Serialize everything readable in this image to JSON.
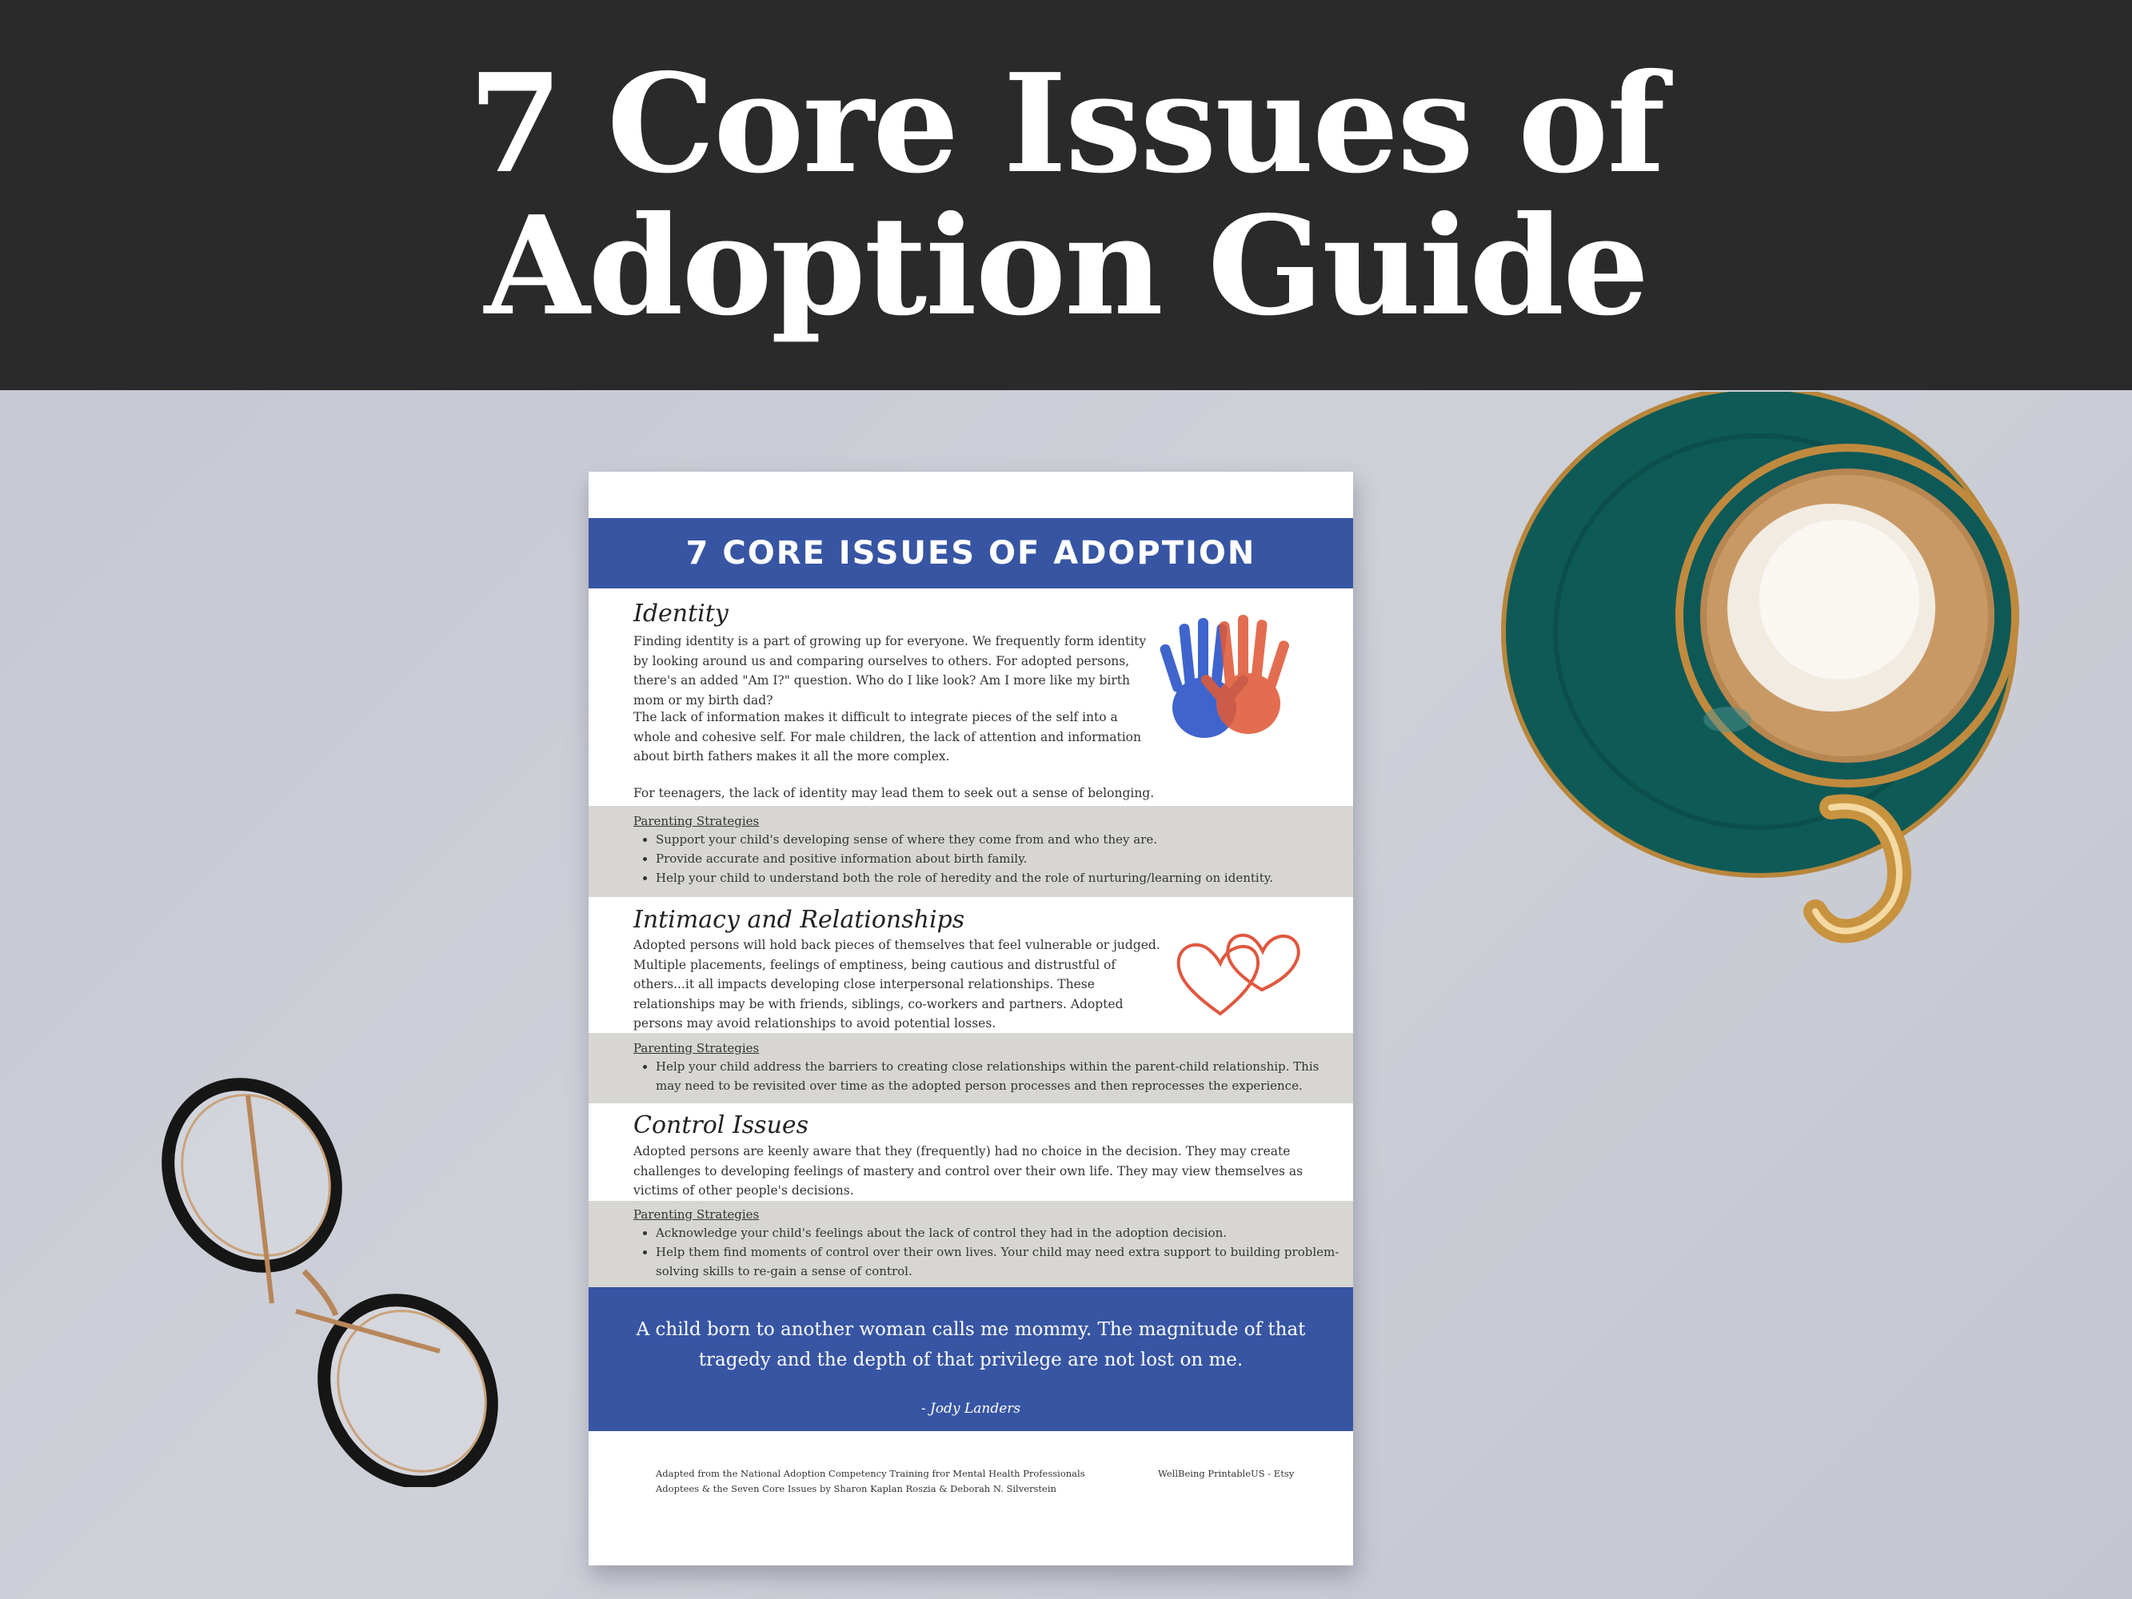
{
  "banner": {
    "line1": "7 Core Issues of",
    "line2": "Adoption Guide"
  },
  "document": {
    "title": "7 CORE ISSUES OF ADOPTION",
    "sections": [
      {
        "heading": "Identity",
        "paragraphs": [
          "Finding identity is a part of growing up for everyone.  We frequently form identity by looking around us and comparing ourselves to others.  For adopted persons, there's an added \"Am I?\" question.  Who do I like look?  Am I more like my birth mom or my birth dad?",
          "The lack of information makes it difficult to integrate pieces of the self into a whole and cohesive self.  For male children, the lack of attention and information about birth fathers makes it all the more complex.",
          "For teenagers, the lack of identity may lead them to seek out a sense of belonging."
        ],
        "strategies_label": "Parenting Strategies",
        "strategies": [
          "Support your child's developing sense of where they come from and who they are.",
          "Provide accurate and positive information about birth family.",
          "Help your child to understand both the role of heredity and the role of nurturing/learning on identity."
        ]
      },
      {
        "heading": "Intimacy and Relationships",
        "paragraphs": [
          "Adopted persons will hold back pieces of themselves that feel vulnerable or judged.  Multiple placements, feelings of emptiness, being cautious and distrustful of others...it all impacts developing close interpersonal relationships.  These relationships may be with friends, siblings, co-workers and partners.  Adopted persons may avoid relationships to avoid potential losses."
        ],
        "strategies_label": "Parenting Strategies",
        "strategies": [
          "Help your child address the barriers to creating close relationships within the parent-child relationship.  This may need to be revisited over time as the adopted person processes and then reprocesses the experience."
        ]
      },
      {
        "heading": "Control Issues",
        "paragraphs": [
          "Adopted persons are keenly aware that they (frequently) had no choice in the decision.  They may create challenges to developing feelings of mastery and control over their own life.  They may view themselves as victims of other people's decisions."
        ],
        "strategies_label": "Parenting Strategies",
        "strategies": [
          "Acknowledge your child's feelings about the lack of control they had in the adoption decision.",
          "Help them find moments of control over their own lives.  Your child may need extra support to building problem-solving skills to re-gain a sense of control."
        ]
      }
    ],
    "quote": {
      "text": "A child born to another woman calls me mommy. The magnitude of that tragedy and the depth of that privilege are not lost on me.",
      "author": "- Jody Landers"
    },
    "footer": {
      "source_line1": "Adapted from the National Adoption Competency Training fror Mental Health Professionals",
      "source_line2": "Adoptees & the Seven Core Issues by Sharon Kaplan Roszia & Deborah N. Silverstein",
      "credit": "WellBeing PrintableUS - Etsy"
    }
  },
  "colors": {
    "banner": "#2a2a2a",
    "doc_blue": "#3755a3",
    "strategy_gray": "#d7d6d2",
    "saucer_teal": "#0e5a57",
    "heart_red": "#e0573f"
  },
  "icons": [
    "handprints-icon",
    "hearts-icon",
    "coffee-cup-icon",
    "eyeglasses-icon"
  ]
}
